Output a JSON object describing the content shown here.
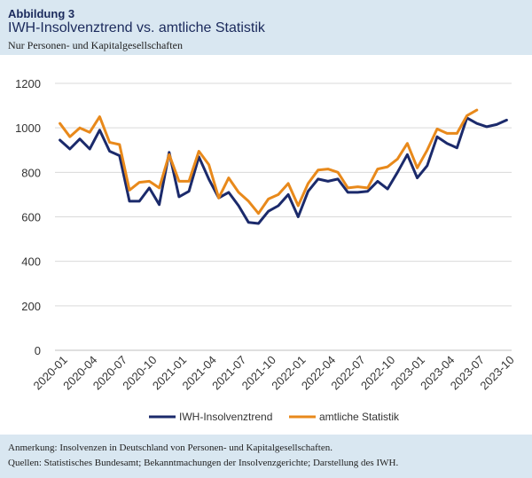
{
  "figure_label": "Abbildung 3",
  "title": "IWH-Insolvenztrend vs. amtliche Statistik",
  "subtitle": "Nur Personen- und Kapitalgesellschaften",
  "notes": {
    "anmerkung": "Anmerkung: Insolvenzen in Deutschland von Personen- und Kapitalgesellschaften.",
    "quellen": "Quellen: Statistisches Bundesamt; Bekanntmachungen der Insolvenzgerichte; Darstellung des IWH."
  },
  "chart_data": {
    "type": "line",
    "title": "IWH-Insolvenztrend vs. amtliche Statistik",
    "xlabel": "",
    "ylabel": "",
    "ylim": [
      0,
      1200
    ],
    "yticks": [
      0,
      200,
      400,
      600,
      800,
      1000,
      1200
    ],
    "grid": true,
    "legend_position": "bottom",
    "x": [
      "2020-01",
      "2020-02",
      "2020-03",
      "2020-04",
      "2020-05",
      "2020-06",
      "2020-07",
      "2020-08",
      "2020-09",
      "2020-10",
      "2020-11",
      "2020-12",
      "2021-01",
      "2021-02",
      "2021-03",
      "2021-04",
      "2021-05",
      "2021-06",
      "2021-07",
      "2021-08",
      "2021-09",
      "2021-10",
      "2021-11",
      "2021-12",
      "2022-01",
      "2022-02",
      "2022-03",
      "2022-04",
      "2022-05",
      "2022-06",
      "2022-07",
      "2022-08",
      "2022-09",
      "2022-10",
      "2022-11",
      "2022-12",
      "2023-01",
      "2023-02",
      "2023-03",
      "2023-04",
      "2023-05",
      "2023-06",
      "2023-07",
      "2023-08",
      "2023-09",
      "2023-10"
    ],
    "x_tick_labels": [
      "2020-01",
      "2020-04",
      "2020-07",
      "2020-10",
      "2021-01",
      "2021-04",
      "2021-07",
      "2021-10",
      "2022-01",
      "2022-04",
      "2022-07",
      "2022-10",
      "2023-01",
      "2023-04",
      "2023-07",
      "2023-10"
    ],
    "series": [
      {
        "name": "IWH-Insolvenztrend",
        "color": "#1b2a6b",
        "values": [
          945,
          905,
          950,
          905,
          990,
          895,
          875,
          670,
          670,
          730,
          655,
          890,
          690,
          715,
          870,
          770,
          685,
          710,
          650,
          575,
          570,
          625,
          650,
          700,
          600,
          715,
          770,
          760,
          770,
          710,
          710,
          715,
          760,
          725,
          800,
          880,
          775,
          830,
          960,
          930,
          910,
          1045,
          1020,
          1005,
          1015,
          1035
        ]
      },
      {
        "name": "amtliche Statistik",
        "color": "#e8891b",
        "values": [
          1020,
          960,
          1000,
          980,
          1050,
          935,
          925,
          720,
          755,
          760,
          730,
          880,
          760,
          760,
          895,
          835,
          685,
          775,
          710,
          670,
          615,
          680,
          700,
          750,
          650,
          750,
          810,
          815,
          800,
          730,
          735,
          730,
          815,
          825,
          860,
          930,
          820,
          900,
          995,
          975,
          975,
          1055,
          1080,
          null,
          null,
          null
        ]
      }
    ]
  }
}
